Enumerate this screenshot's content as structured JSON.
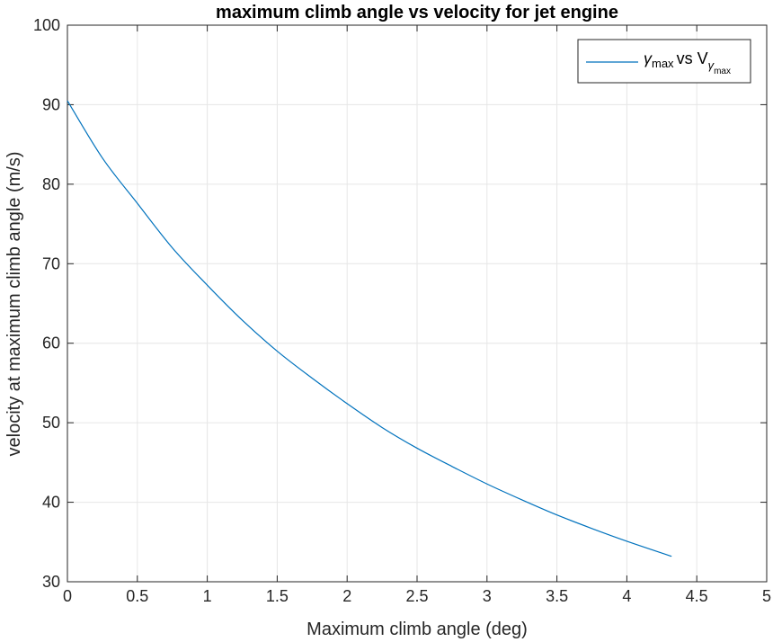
{
  "chart_data": {
    "type": "line",
    "title": "maximum climb angle vs velocity for jet engine",
    "xlabel": "Maximum climb angle (deg)",
    "ylabel": "velocity at maximum climb angle (m/s)",
    "xlim": [
      0,
      5
    ],
    "ylim": [
      30,
      100
    ],
    "xticks": [
      "0",
      "0.5",
      "1",
      "1.5",
      "2",
      "2.5",
      "3",
      "3.5",
      "4",
      "4.5",
      "5"
    ],
    "yticks": [
      "30",
      "40",
      "50",
      "60",
      "70",
      "80",
      "90",
      "100"
    ],
    "grid": true,
    "legend_position": "top-right",
    "line_color": "#0072BD",
    "legend": {
      "gamma": "γ",
      "max": "max",
      "vs": "vs V"
    },
    "series": [
      {
        "x": [
          0,
          0.25,
          0.5,
          0.75,
          1.0,
          1.25,
          1.5,
          1.75,
          2.0,
          2.25,
          2.5,
          2.75,
          3.0,
          3.25,
          3.5,
          3.75,
          4.0,
          4.32
        ],
        "y": [
          90.5,
          83.3,
          77.6,
          72.0,
          67.3,
          62.9,
          59.0,
          55.6,
          52.4,
          49.4,
          46.8,
          44.5,
          42.3,
          40.3,
          38.4,
          36.7,
          35.1,
          33.2
        ]
      }
    ]
  }
}
